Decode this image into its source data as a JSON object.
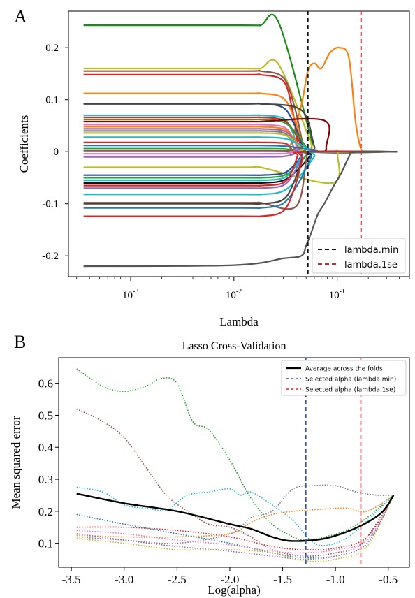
{
  "chart_data": [
    {
      "panel": "A",
      "type": "line",
      "xscale": "log",
      "xlabel": "Lambda",
      "ylabel": "Coefficients",
      "xlim": [
        0.00025,
        0.5
      ],
      "ylim": [
        -0.24,
        0.27
      ],
      "xticks": [
        {
          "value": 0.001,
          "base": "10",
          "exp": "-3"
        },
        {
          "value": 0.01,
          "base": "10",
          "exp": "-2"
        },
        {
          "value": 0.1,
          "base": "10",
          "exp": "-1"
        }
      ],
      "yticks": [
        {
          "value": 0.2,
          "label": "0.2"
        },
        {
          "value": 0.1,
          "label": "0.1"
        },
        {
          "value": 0,
          "label": "0"
        },
        {
          "value": -0.1,
          "label": "-0.1"
        },
        {
          "value": -0.2,
          "label": "-0.2"
        }
      ],
      "vlines": [
        {
          "name": "lambda.min",
          "x": 0.052,
          "color": "#111111"
        },
        {
          "name": "lambda.1se",
          "x": 0.17,
          "color": "#e3202a"
        }
      ],
      "legend_position": "lower-right",
      "lambda_range": [
        0.00035,
        0.38
      ],
      "series": [
        {
          "color": "#1a8a1a",
          "start": 0.243,
          "peak": [
            0.027,
            0.249
          ],
          "zero": 0.06
        },
        {
          "color": "#ff7f0e",
          "start": 0,
          "points": [
            [
              0.034,
              0
            ],
            [
              0.045,
              0.09
            ],
            [
              0.052,
              0.155
            ],
            [
              0.06,
              0.17
            ],
            [
              0.07,
              0.16
            ],
            [
              0.085,
              0.19
            ],
            [
              0.105,
              0.2
            ],
            [
              0.13,
              0.18
            ],
            [
              0.15,
              0.06
            ],
            [
              0.17,
              0.005
            ],
            [
              0.19,
              0
            ]
          ]
        },
        {
          "color": "#bcbd22",
          "start": 0.16,
          "peak": [
            0.027,
            0.168
          ],
          "zero": 0.06
        },
        {
          "color": "#8c564b",
          "start": 0.155,
          "zero": 0.05
        },
        {
          "color": "#d62728",
          "start": 0.148,
          "zero": 0.045
        },
        {
          "color": "#ff7f0e",
          "start": 0.112,
          "zero": 0.05
        },
        {
          "color": "#1f4e9c",
          "start": 0.092,
          "zero": 0.05
        },
        {
          "color": "#444444",
          "start": 0.092,
          "peak": [
            0.045,
            0.08
          ],
          "zero": 0.065
        },
        {
          "color": "#17becf",
          "start": 0.07,
          "zero": 0.045
        },
        {
          "color": "#d62728",
          "start": 0.066,
          "zero": 0.05
        },
        {
          "color": "#2ca02c",
          "start": 0.062,
          "zero": 0.055
        },
        {
          "color": "#8b0000",
          "start": 0.058,
          "peak": [
            0.075,
            0.06
          ],
          "zero": 0.085
        },
        {
          "color": "#e377c2",
          "start": 0.052,
          "zero": 0.045
        },
        {
          "color": "#ff7f0e",
          "start": 0.048,
          "zero": 0.048
        },
        {
          "color": "#9467bd",
          "start": 0.044,
          "zero": 0.047
        },
        {
          "color": "#7f7f7f",
          "start": 0.04,
          "zero": 0.042
        },
        {
          "color": "#bcbd22",
          "start": 0.036,
          "zero": 0.05
        },
        {
          "color": "#17becf",
          "start": 0.028,
          "zero": 0.06
        },
        {
          "color": "#d62728",
          "start": 0.018,
          "zero": 0.04
        },
        {
          "color": "#1f77b4",
          "start": 0.012,
          "zero": 0.07
        },
        {
          "color": "#2ca02c",
          "start": 0.006,
          "zero": 0.04
        },
        {
          "color": "#8c564b",
          "start": 0.002,
          "zero": 0.04
        },
        {
          "color": "#e377c2",
          "start": -0.004,
          "zero": 0.042
        },
        {
          "color": "#9467bd",
          "start": -0.01,
          "zero": 0.045
        },
        {
          "color": "#bcbd22",
          "start": -0.03,
          "peak": [
            0.09,
            -0.06
          ],
          "zero": 0.11
        },
        {
          "color": "#1f4e9c",
          "start": -0.045,
          "zero": 0.05
        },
        {
          "color": "#2ca02c",
          "start": -0.05,
          "zero": 0.055
        },
        {
          "color": "#17becf",
          "start": -0.055,
          "zero": 0.05
        },
        {
          "color": "#111111",
          "start": -0.06,
          "zero": 0.06
        },
        {
          "color": "#d62728",
          "start": -0.065,
          "zero": 0.045
        },
        {
          "color": "#9467bd",
          "start": -0.07,
          "zero": 0.05
        },
        {
          "color": "#17becf",
          "start": -0.082,
          "zero": 0.065
        },
        {
          "color": "#8c564b",
          "start": -0.098,
          "peak": [
            0.04,
            -0.105
          ],
          "zero": 0.055
        },
        {
          "color": "#444444",
          "start": -0.1,
          "zero": 0.05
        },
        {
          "color": "#1f77b4",
          "start": -0.108,
          "zero": 0.06
        },
        {
          "color": "#d62728",
          "start": -0.124,
          "zero": 0.05
        },
        {
          "color": "#555555",
          "start": -0.22,
          "points": [
            [
              0.00035,
              -0.22
            ],
            [
              0.01,
              -0.218
            ],
            [
              0.03,
              -0.205
            ],
            [
              0.045,
              -0.2
            ],
            [
              0.05,
              -0.18
            ],
            [
              0.055,
              -0.16
            ],
            [
              0.065,
              -0.12
            ],
            [
              0.075,
              -0.1
            ],
            [
              0.09,
              -0.07
            ],
            [
              0.11,
              -0.04
            ],
            [
              0.13,
              -0.01
            ],
            [
              0.15,
              0
            ],
            [
              0.38,
              0
            ]
          ]
        }
      ]
    },
    {
      "panel": "B",
      "type": "line",
      "title": "Lasso Cross-Validation",
      "xlabel": "Log(alpha)",
      "ylabel": "Mean squared error",
      "xlim": [
        -3.62,
        -0.3
      ],
      "ylim": [
        0.025,
        0.68
      ],
      "xticks": [
        -3.5,
        -3.0,
        -2.5,
        -2.0,
        -1.5,
        -1.0,
        -0.5
      ],
      "xticklabels": [
        "-3.5",
        "-3.0",
        "-2.5",
        "-2.0",
        "-1.5",
        "-1.0",
        "-0.5"
      ],
      "yticks": [
        0.1,
        0.2,
        0.3,
        0.4,
        0.5,
        0.6
      ],
      "yticklabels": [
        "0.1",
        "0.2",
        "0.3",
        "0.4",
        "0.5",
        "0.6"
      ],
      "vlines": [
        {
          "name": "Selected alpha (lambda.min)",
          "x": -1.28,
          "color": "#3050c0"
        },
        {
          "name": "Selected alpha (lambda.1se)",
          "x": -0.76,
          "color": "#e3202a"
        }
      ],
      "average": {
        "name": "Average across the folds",
        "color": "#000000",
        "points": [
          [
            -3.45,
            0.255
          ],
          [
            -3.0,
            0.225
          ],
          [
            -2.5,
            0.2
          ],
          [
            -2.0,
            0.16
          ],
          [
            -1.8,
            0.145
          ],
          [
            -1.6,
            0.12
          ],
          [
            -1.45,
            0.108
          ],
          [
            -1.28,
            0.108
          ],
          [
            -1.1,
            0.115
          ],
          [
            -0.9,
            0.135
          ],
          [
            -0.7,
            0.165
          ],
          [
            -0.55,
            0.2
          ],
          [
            -0.45,
            0.25
          ]
        ]
      },
      "folds": [
        {
          "color": "#2ca02c",
          "points": [
            [
              -3.45,
              0.645
            ],
            [
              -3.2,
              0.59
            ],
            [
              -3.0,
              0.575
            ],
            [
              -2.8,
              0.59
            ],
            [
              -2.65,
              0.615
            ],
            [
              -2.5,
              0.6
            ],
            [
              -2.35,
              0.48
            ],
            [
              -2.2,
              0.455
            ],
            [
              -2.0,
              0.36
            ],
            [
              -1.8,
              0.24
            ],
            [
              -1.6,
              0.16
            ],
            [
              -1.4,
              0.12
            ],
            [
              -1.28,
              0.11
            ],
            [
              -1.1,
              0.12
            ],
            [
              -0.9,
              0.14
            ],
            [
              -0.7,
              0.18
            ],
            [
              -0.45,
              0.25
            ]
          ]
        },
        {
          "color": "#8c564b",
          "points": [
            [
              -3.45,
              0.52
            ],
            [
              -3.2,
              0.48
            ],
            [
              -3.0,
              0.43
            ],
            [
              -2.8,
              0.34
            ],
            [
              -2.6,
              0.25
            ],
            [
              -2.4,
              0.2
            ],
            [
              -2.2,
              0.16
            ],
            [
              -2.0,
              0.15
            ],
            [
              -1.8,
              0.12
            ],
            [
              -1.6,
              0.08
            ],
            [
              -1.3,
              0.06
            ],
            [
              -1.0,
              0.07
            ],
            [
              -0.75,
              0.1
            ],
            [
              -0.45,
              0.25
            ]
          ]
        },
        {
          "color": "#17becf",
          "points": [
            [
              -3.45,
              0.275
            ],
            [
              -3.2,
              0.26
            ],
            [
              -3.0,
              0.22
            ],
            [
              -2.8,
              0.21
            ],
            [
              -2.6,
              0.205
            ],
            [
              -2.4,
              0.25
            ],
            [
              -2.2,
              0.26
            ],
            [
              -2.0,
              0.27
            ],
            [
              -1.9,
              0.25
            ],
            [
              -1.8,
              0.26
            ],
            [
              -1.6,
              0.22
            ],
            [
              -1.4,
              0.17
            ],
            [
              -1.2,
              0.1
            ],
            [
              -1.0,
              0.1
            ],
            [
              -0.8,
              0.14
            ],
            [
              -0.45,
              0.25
            ]
          ]
        },
        {
          "color": "#7f7f7f",
          "points": [
            [
              -3.45,
              0.12
            ],
            [
              -3.0,
              0.11
            ],
            [
              -2.5,
              0.1
            ],
            [
              -2.0,
              0.13
            ],
            [
              -1.8,
              0.18
            ],
            [
              -1.6,
              0.2
            ],
            [
              -1.4,
              0.27
            ],
            [
              -1.2,
              0.28
            ],
            [
              -1.0,
              0.28
            ],
            [
              -0.8,
              0.26
            ],
            [
              -0.6,
              0.25
            ],
            [
              -0.45,
              0.25
            ]
          ]
        },
        {
          "color": "#ff7f0e",
          "points": [
            [
              -3.45,
              0.125
            ],
            [
              -3.0,
              0.12
            ],
            [
              -2.5,
              0.12
            ],
            [
              -2.0,
              0.13
            ],
            [
              -1.8,
              0.165
            ],
            [
              -1.6,
              0.19
            ],
            [
              -1.4,
              0.2
            ],
            [
              -1.2,
              0.205
            ],
            [
              -0.9,
              0.21
            ],
            [
              -0.7,
              0.2
            ],
            [
              -0.45,
              0.25
            ]
          ]
        },
        {
          "color": "#1f77b4",
          "points": [
            [
              -3.45,
              0.19
            ],
            [
              -3.0,
              0.16
            ],
            [
              -2.5,
              0.13
            ],
            [
              -2.0,
              0.1
            ],
            [
              -1.6,
              0.07
            ],
            [
              -1.3,
              0.055
            ],
            [
              -1.0,
              0.06
            ],
            [
              -0.7,
              0.1
            ],
            [
              -0.45,
              0.25
            ]
          ]
        },
        {
          "color": "#d62728",
          "points": [
            [
              -3.45,
              0.15
            ],
            [
              -3.0,
              0.15
            ],
            [
              -2.5,
              0.14
            ],
            [
              -2.0,
              0.12
            ],
            [
              -1.6,
              0.09
            ],
            [
              -1.3,
              0.08
            ],
            [
              -1.0,
              0.085
            ],
            [
              -0.7,
              0.12
            ],
            [
              -0.45,
              0.25
            ]
          ]
        },
        {
          "color": "#e377c2",
          "points": [
            [
              -3.45,
              0.14
            ],
            [
              -3.0,
              0.13
            ],
            [
              -2.5,
              0.11
            ],
            [
              -2.0,
              0.095
            ],
            [
              -1.6,
              0.075
            ],
            [
              -1.3,
              0.07
            ],
            [
              -1.0,
              0.08
            ],
            [
              -0.7,
              0.11
            ],
            [
              -0.45,
              0.25
            ]
          ]
        },
        {
          "color": "#9467bd",
          "points": [
            [
              -3.45,
              0.13
            ],
            [
              -3.0,
              0.11
            ],
            [
              -2.5,
              0.09
            ],
            [
              -2.0,
              0.075
            ],
            [
              -1.6,
              0.06
            ],
            [
              -1.3,
              0.05
            ],
            [
              -1.0,
              0.06
            ],
            [
              -0.7,
              0.1
            ],
            [
              -0.45,
              0.25
            ]
          ]
        },
        {
          "color": "#bcbd22",
          "points": [
            [
              -3.45,
              0.115
            ],
            [
              -3.0,
              0.1
            ],
            [
              -2.5,
              0.08
            ],
            [
              -2.0,
              0.08
            ],
            [
              -1.6,
              0.07
            ],
            [
              -1.3,
              0.045
            ],
            [
              -1.0,
              0.05
            ],
            [
              -0.7,
              0.09
            ],
            [
              -0.45,
              0.25
            ]
          ]
        }
      ],
      "legend_position": "top-right"
    }
  ],
  "panel_labels": {
    "a": "A",
    "b": "B"
  }
}
